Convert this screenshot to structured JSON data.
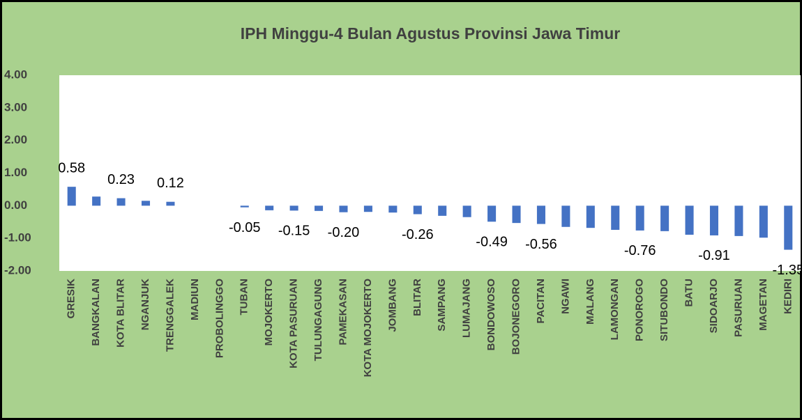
{
  "chart_data": {
    "type": "bar",
    "title": "IPH Minggu-4 Bulan Agustus Provinsi Jawa Timur",
    "categories": [
      "GRESIK",
      "BANGKALAN",
      "KOTA BLITAR",
      "NGANJUK",
      "TRENGGALEK",
      "MADIUN",
      "PROBOLINGGO",
      "TUBAN",
      "MOJOKERTO",
      "KOTA PASURUAN",
      "TULUNGAGUNG",
      "PAMEKASAN",
      "KOTA MOJOKERTO",
      "JOMBANG",
      "BLITAR",
      "SAMPANG",
      "LUMAJANG",
      "BONDOWOSO",
      "BOJONEGORO",
      "PACITAN",
      "NGAWI",
      "MALANG",
      "LAMONGAN",
      "PONOROGO",
      "SITUBONDO",
      "BATU",
      "SIDOARJO",
      "PASURUAN",
      "MAGETAN",
      "KEDIRI"
    ],
    "values": [
      0.58,
      0.28,
      0.23,
      0.15,
      0.12,
      0,
      0,
      -0.05,
      -0.14,
      -0.15,
      -0.16,
      -0.2,
      -0.19,
      -0.21,
      -0.26,
      -0.31,
      -0.35,
      -0.49,
      -0.53,
      -0.56,
      -0.65,
      -0.68,
      -0.74,
      -0.76,
      -0.78,
      -0.89,
      -0.91,
      -0.93,
      -0.98,
      -1.35
    ],
    "value_labels": [
      "0.58",
      null,
      "0.23",
      null,
      "0.12",
      null,
      null,
      "-0.05",
      null,
      "-0.15",
      null,
      "-0.20",
      null,
      null,
      "-0.26",
      null,
      null,
      "-0.49",
      null,
      "-0.56",
      null,
      null,
      null,
      "-0.76",
      null,
      null,
      "-0.91",
      null,
      null,
      "-1.35"
    ],
    "color": "#4472c4",
    "ylim": [
      -2,
      4
    ],
    "yticks": [
      {
        "value": -2,
        "label": "-2.00"
      },
      {
        "value": -1,
        "label": "-1.00"
      },
      {
        "value": 0,
        "label": "0.00"
      },
      {
        "value": 1,
        "label": "1.00"
      },
      {
        "value": 2,
        "label": "2.00"
      },
      {
        "value": 3,
        "label": "3.00"
      },
      {
        "value": 4,
        "label": "4.00"
      }
    ],
    "grid": false
  }
}
